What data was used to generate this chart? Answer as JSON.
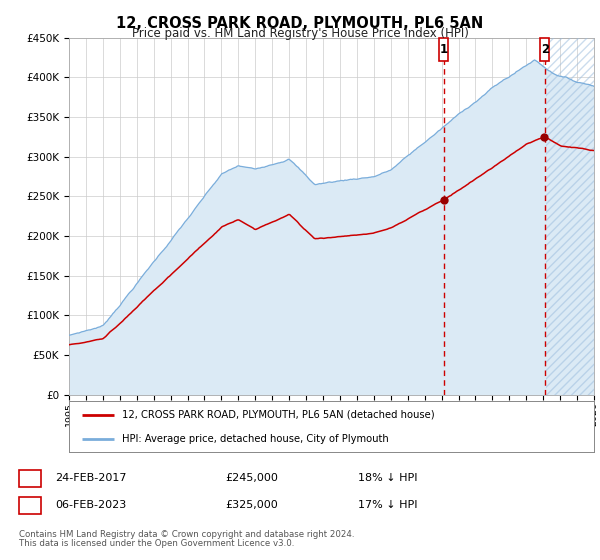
{
  "title": "12, CROSS PARK ROAD, PLYMOUTH, PL6 5AN",
  "subtitle": "Price paid vs. HM Land Registry's House Price Index (HPI)",
  "ylim": [
    0,
    450000
  ],
  "yticks": [
    0,
    50000,
    100000,
    150000,
    200000,
    250000,
    300000,
    350000,
    400000,
    450000
  ],
  "year_start": 1995,
  "year_end": 2026,
  "hpi_color": "#7aaddb",
  "hpi_fill_color": "#dbeaf5",
  "price_color": "#cc0000",
  "marker_color": "#990000",
  "vline_color": "#cc0000",
  "grid_color": "#cccccc",
  "background_color": "#ffffff",
  "hatch_color": "#99bbdd",
  "transaction1_date": "24-FEB-2017",
  "transaction1_price": 245000,
  "transaction1_label": "18% ↓ HPI",
  "transaction2_date": "06-FEB-2023",
  "transaction2_price": 325000,
  "transaction2_label": "17% ↓ HPI",
  "legend_line1": "12, CROSS PARK ROAD, PLYMOUTH, PL6 5AN (detached house)",
  "legend_line2": "HPI: Average price, detached house, City of Plymouth",
  "footnote1": "Contains HM Land Registry data © Crown copyright and database right 2024.",
  "footnote2": "This data is licensed under the Open Government Licence v3.0.",
  "transaction1_year": 2017.12,
  "transaction2_year": 2023.09
}
